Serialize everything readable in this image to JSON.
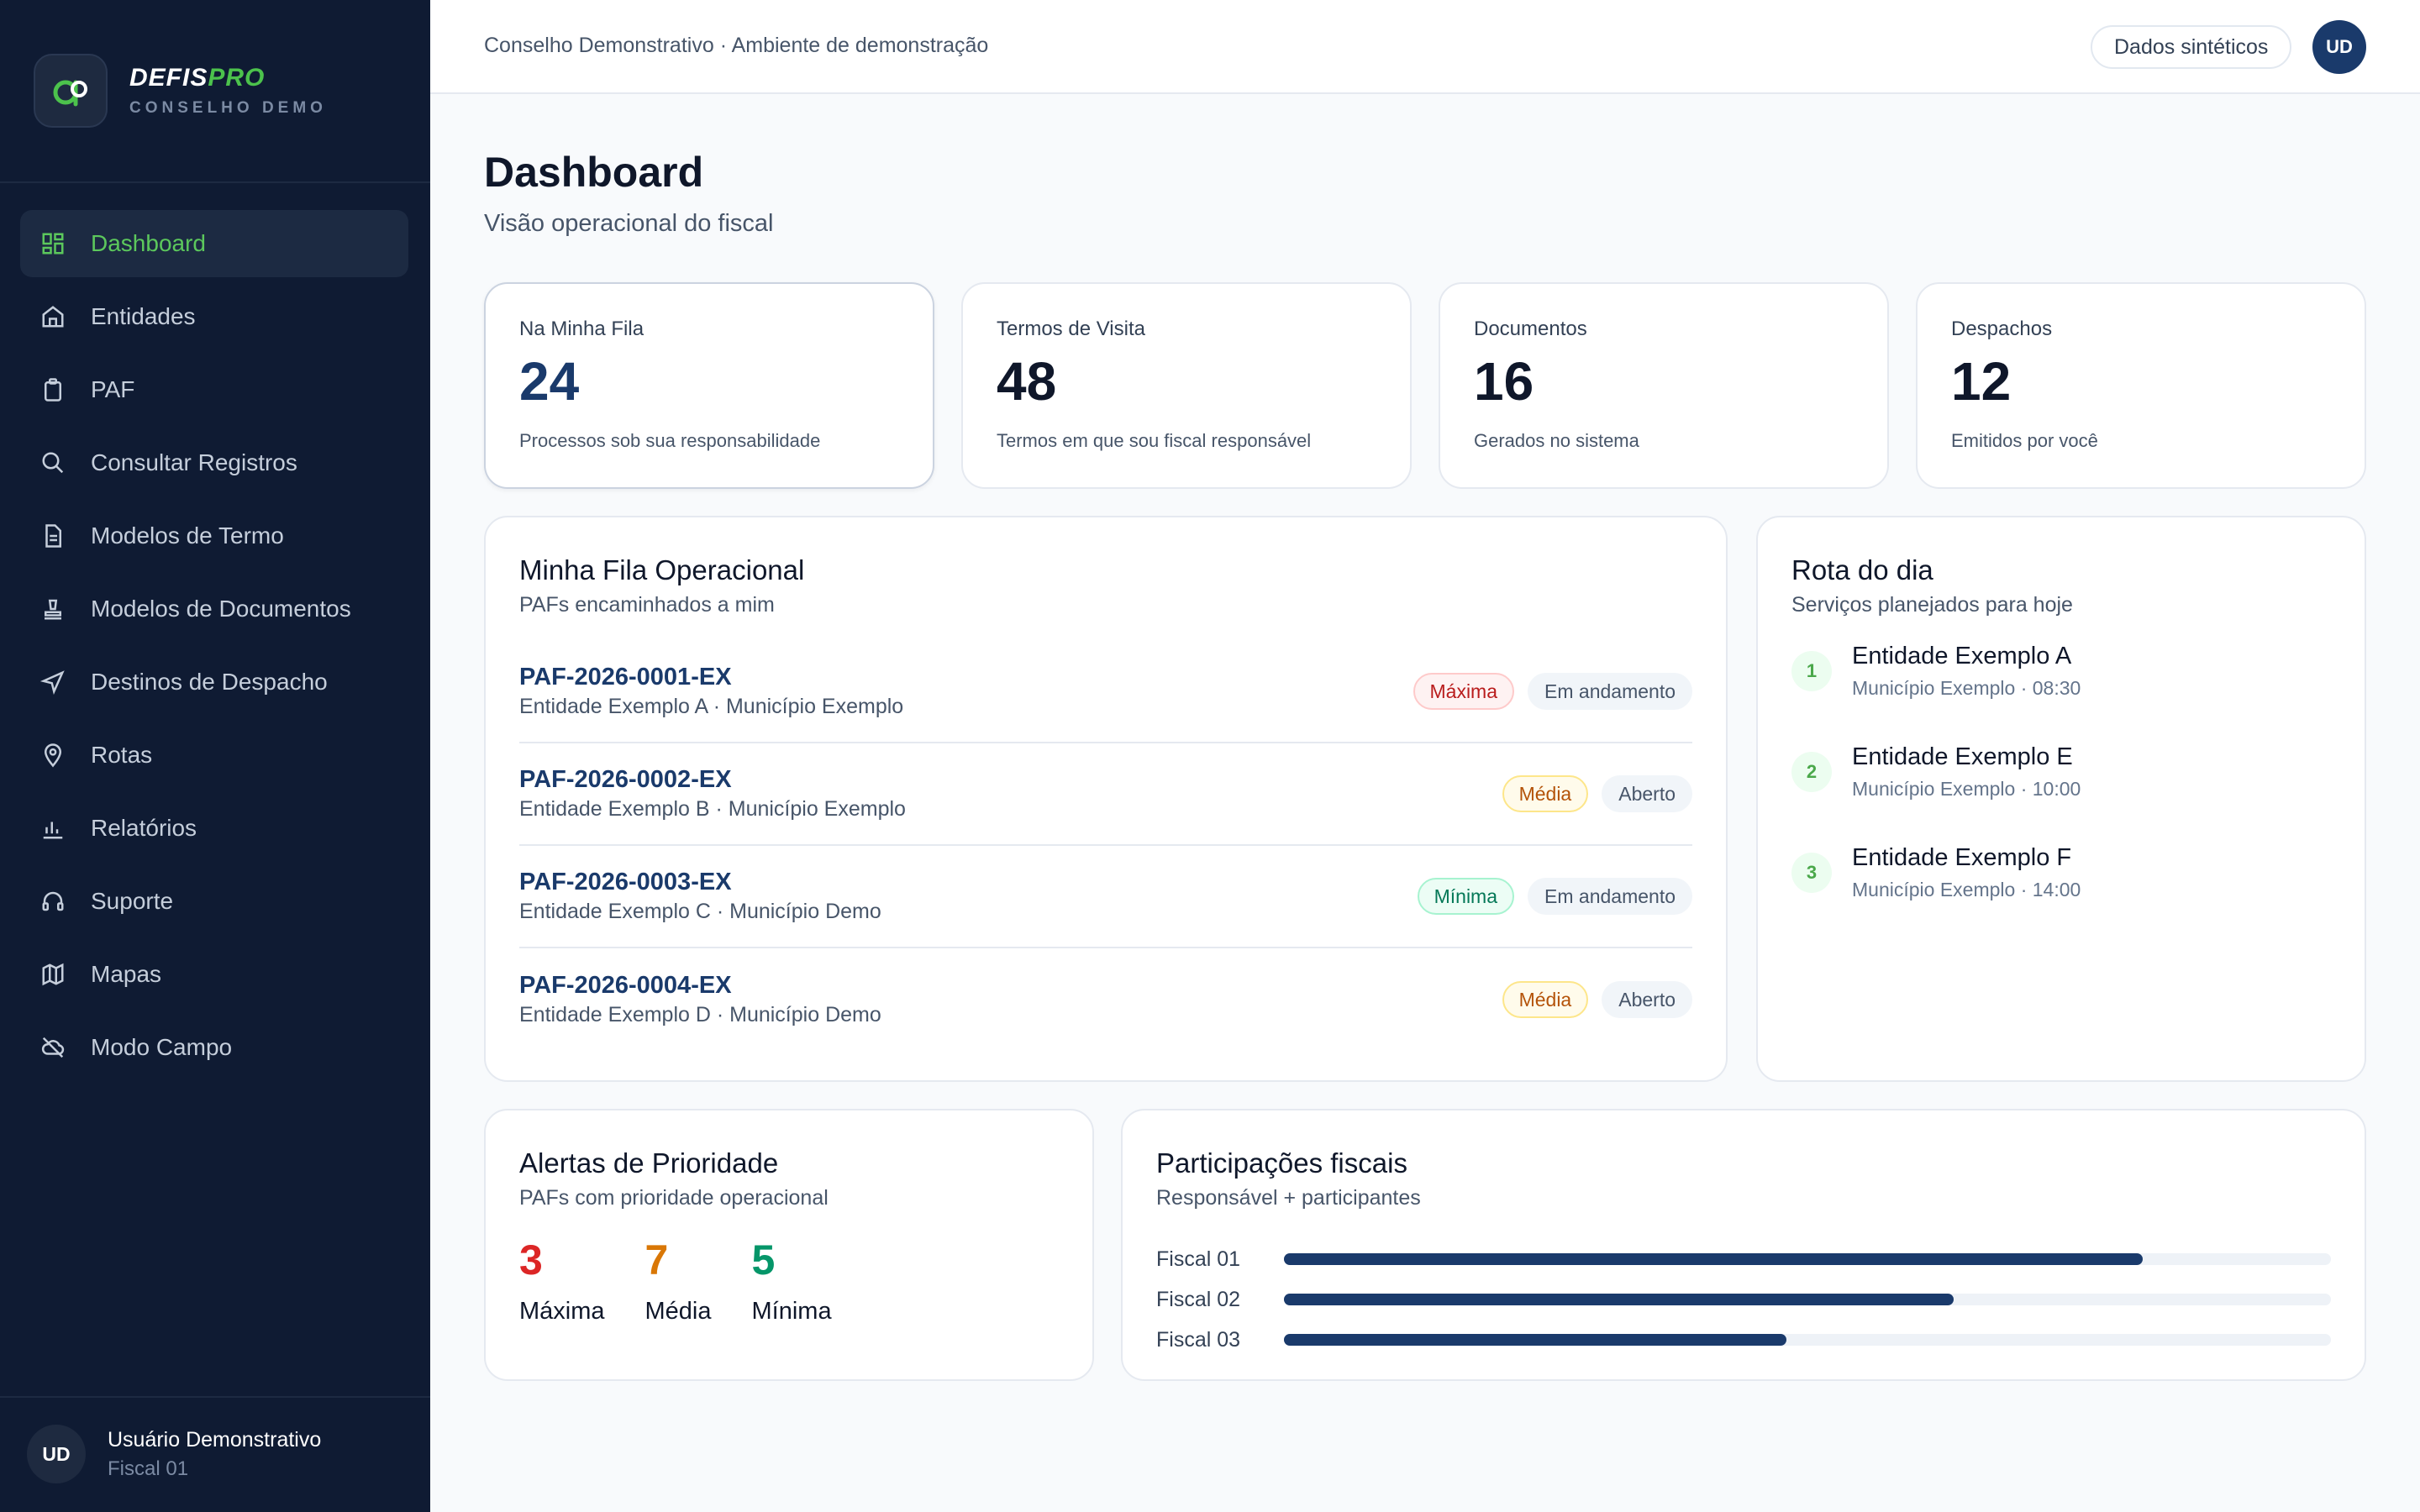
{
  "brand": {
    "name_main": "DEFIS",
    "name_accent": "PRO",
    "subtitle": "CONSELHO DEMO"
  },
  "sidebar": {
    "items": [
      {
        "label": "Dashboard",
        "icon": "grid-icon",
        "active": true
      },
      {
        "label": "Entidades",
        "icon": "building-icon",
        "active": false
      },
      {
        "label": "PAF",
        "icon": "clipboard-icon",
        "active": false
      },
      {
        "label": "Consultar Registros",
        "icon": "search-icon",
        "active": false
      },
      {
        "label": "Modelos de Termo",
        "icon": "document-icon",
        "active": false
      },
      {
        "label": "Modelos de Documentos",
        "icon": "stamp-icon",
        "active": false
      },
      {
        "label": "Destinos de Despacho",
        "icon": "send-icon",
        "active": false
      },
      {
        "label": "Rotas",
        "icon": "map-pin-icon",
        "active": false
      },
      {
        "label": "Relatórios",
        "icon": "bar-chart-icon",
        "active": false
      },
      {
        "label": "Suporte",
        "icon": "headset-icon",
        "active": false
      },
      {
        "label": "Mapas",
        "icon": "map-icon",
        "active": false
      },
      {
        "label": "Modo Campo",
        "icon": "cloud-off-icon",
        "active": false
      }
    ]
  },
  "user": {
    "initials": "UD",
    "name": "Usuário Demonstrativo",
    "role": "Fiscal 01"
  },
  "topbar": {
    "breadcrumb": "Conselho Demonstrativo · Ambiente de demonstração",
    "chip": "Dados sintéticos",
    "avatar": "UD"
  },
  "page": {
    "title": "Dashboard",
    "subtitle": "Visão operacional do fiscal"
  },
  "stats": [
    {
      "label": "Na Minha Fila",
      "value": "24",
      "desc": "Processos sob sua responsabilidade"
    },
    {
      "label": "Termos de Visita",
      "value": "48",
      "desc": "Termos em que sou fiscal responsável"
    },
    {
      "label": "Documentos",
      "value": "16",
      "desc": "Gerados no sistema"
    },
    {
      "label": "Despachos",
      "value": "12",
      "desc": "Emitidos por você"
    }
  ],
  "queue": {
    "title": "Minha Fila Operacional",
    "subtitle": "PAFs encaminhados a mim",
    "rows": [
      {
        "id": "PAF-2026-0001-EX",
        "entity": "Entidade Exemplo A · Município Exemplo",
        "priority": "Máxima",
        "status": "Em andamento"
      },
      {
        "id": "PAF-2026-0002-EX",
        "entity": "Entidade Exemplo B · Município Exemplo",
        "priority": "Média",
        "status": "Aberto"
      },
      {
        "id": "PAF-2026-0003-EX",
        "entity": "Entidade Exemplo C · Município Demo",
        "priority": "Mínima",
        "status": "Em andamento"
      },
      {
        "id": "PAF-2026-0004-EX",
        "entity": "Entidade Exemplo D · Município Demo",
        "priority": "Média",
        "status": "Aberto"
      }
    ]
  },
  "route": {
    "title": "Rota do dia",
    "subtitle": "Serviços planejados para hoje",
    "items": [
      {
        "num": "1",
        "name": "Entidade Exemplo A",
        "meta": "Município Exemplo · 08:30"
      },
      {
        "num": "2",
        "name": "Entidade Exemplo E",
        "meta": "Município Exemplo · 10:00"
      },
      {
        "num": "3",
        "name": "Entidade Exemplo F",
        "meta": "Município Exemplo · 14:00"
      }
    ]
  },
  "alerts": {
    "title": "Alertas de Prioridade",
    "subtitle": "PAFs com prioridade operacional",
    "counts": [
      {
        "value": "3",
        "label": "Máxima",
        "color": "#dc2626"
      },
      {
        "value": "7",
        "label": "Média",
        "color": "#d97706"
      },
      {
        "value": "5",
        "label": "Mínima",
        "color": "#059669"
      }
    ]
  },
  "participations": {
    "title": "Participações fiscais",
    "subtitle": "Responsável + participantes",
    "rows": [
      {
        "label": "Fiscal 01",
        "fraction": 0.82
      },
      {
        "label": "Fiscal 02",
        "fraction": 0.64
      },
      {
        "label": "Fiscal 03",
        "fraction": 0.48
      }
    ]
  },
  "colors": {
    "sidebar_bg": "#0f1b33",
    "accent_green": "#5cc85c",
    "primary_navy": "#1a3a6b"
  }
}
